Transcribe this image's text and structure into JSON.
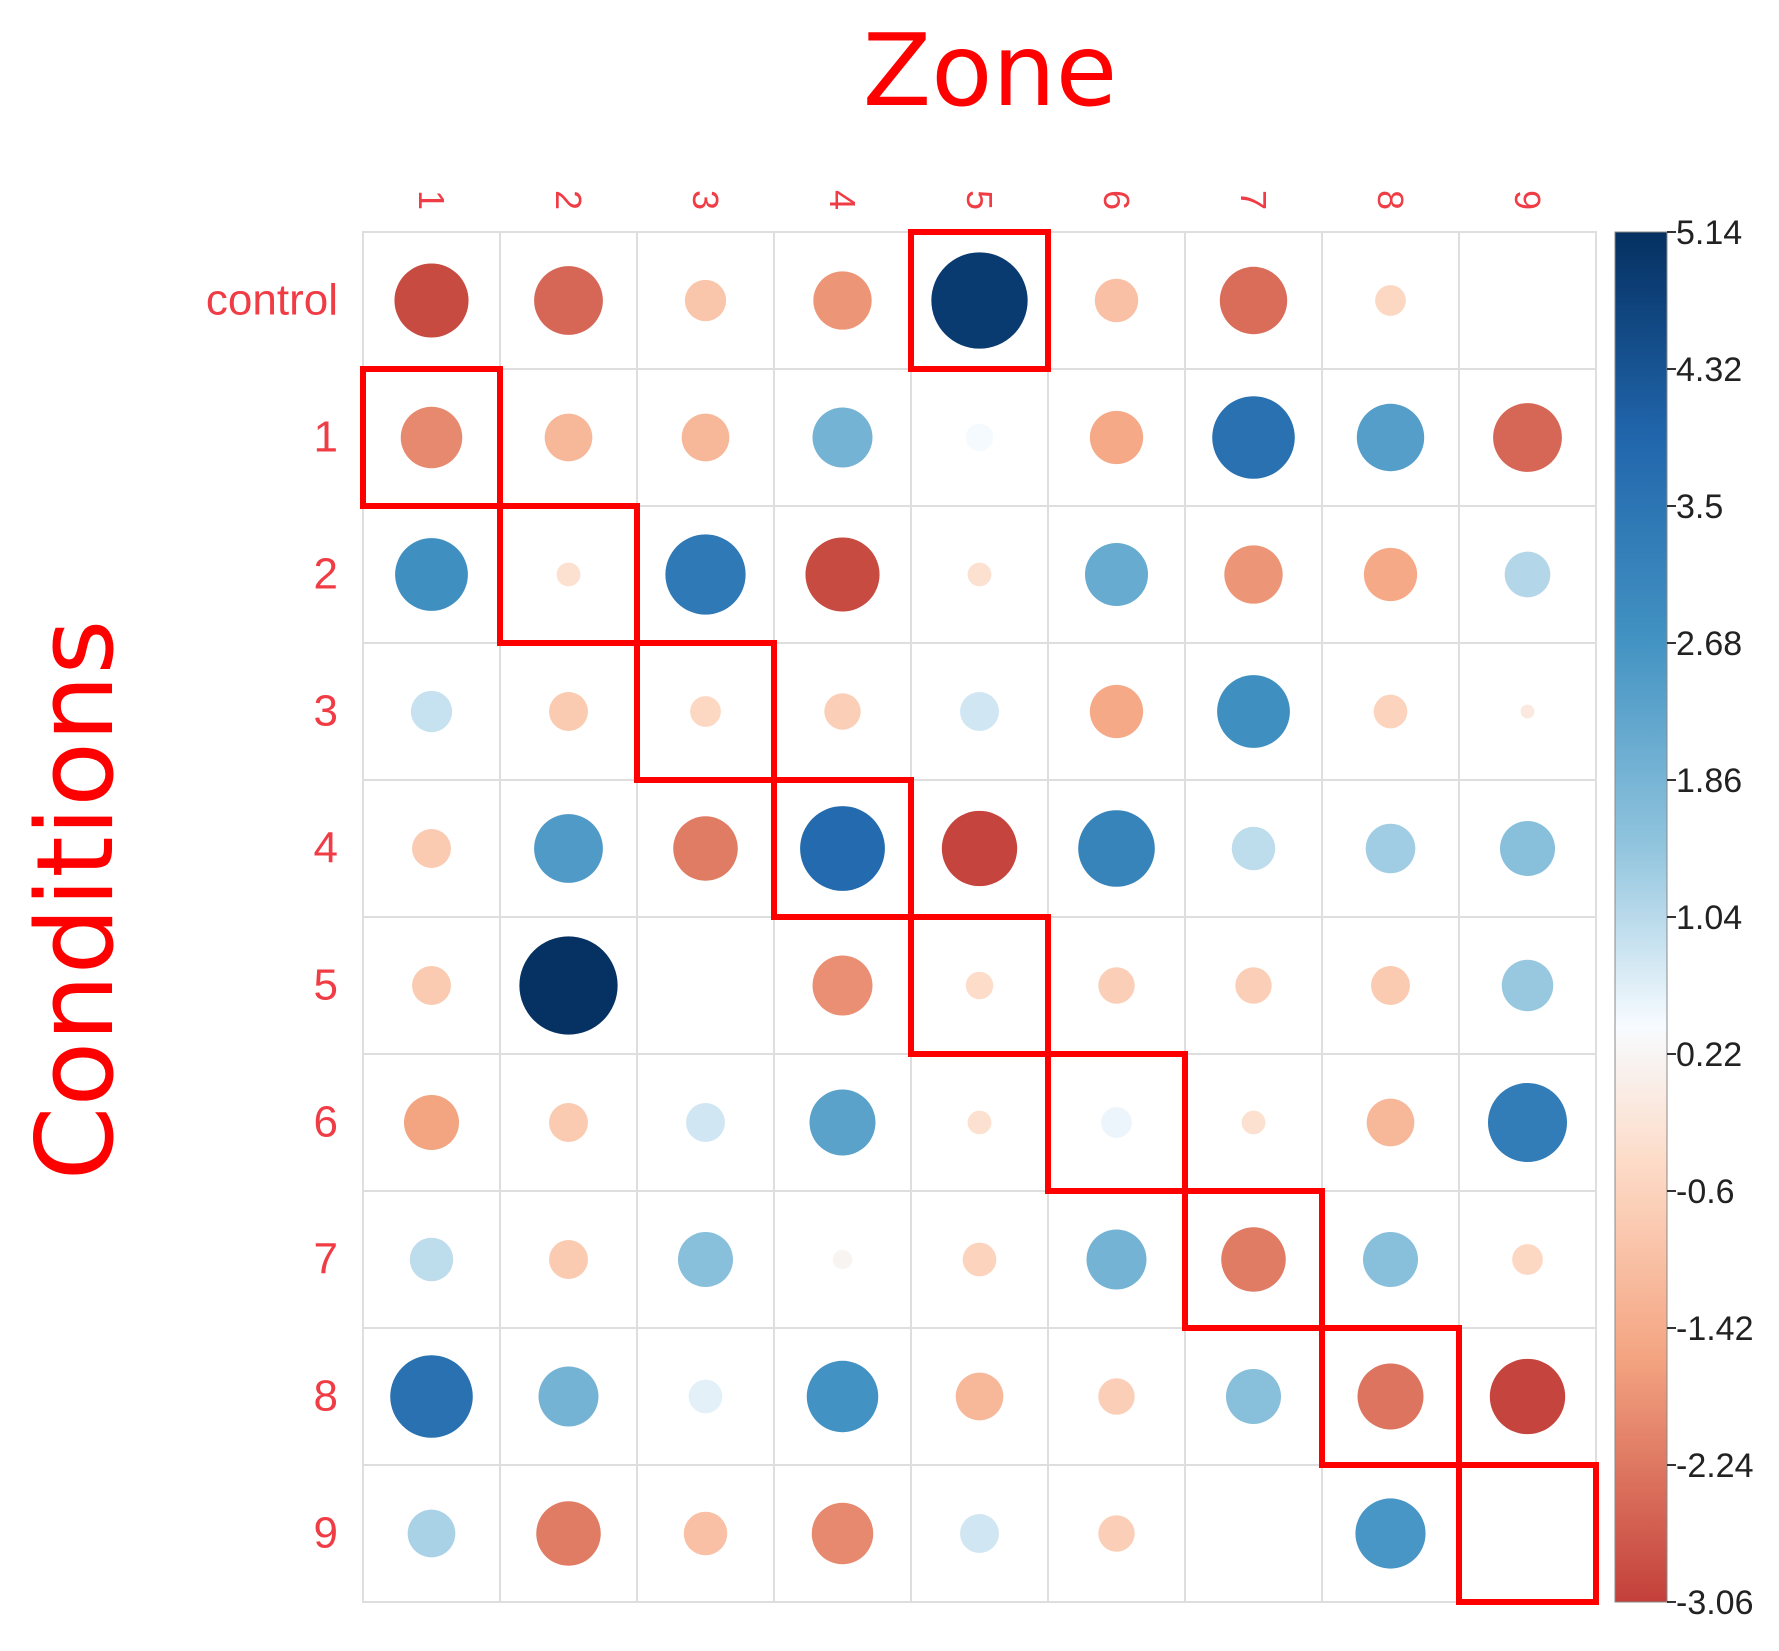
{
  "chart_data": {
    "type": "heatmap",
    "title": "Zone",
    "xlabel": "Zone",
    "ylabel": "Conditions",
    "columns": [
      "1",
      "2",
      "3",
      "4",
      "5",
      "6",
      "7",
      "8",
      "9"
    ],
    "rows": [
      "control",
      "1",
      "2",
      "3",
      "4",
      "5",
      "6",
      "7",
      "8",
      "9"
    ],
    "values": [
      [
        -2.9,
        -2.5,
        -0.9,
        -1.8,
        4.9,
        -1.0,
        -2.4,
        -0.5,
        0.0
      ],
      [
        -2.0,
        -1.2,
        -1.2,
        1.9,
        0.4,
        -1.5,
        3.6,
        2.4,
        -2.5
      ],
      [
        2.8,
        -0.3,
        3.4,
        -2.9,
        -0.3,
        2.1,
        -1.8,
        -1.5,
        1.1
      ],
      [
        0.9,
        -0.8,
        -0.5,
        -0.7,
        0.8,
        -1.5,
        2.8,
        -0.6,
        -0.1
      ],
      [
        -0.8,
        2.5,
        -2.2,
        3.8,
        -3.0,
        3.1,
        1.0,
        1.3,
        1.6
      ],
      [
        -0.8,
        5.1,
        0.0,
        -1.9,
        -0.4,
        -0.7,
        -0.7,
        -0.8,
        1.4
      ],
      [
        -1.6,
        -0.8,
        0.8,
        2.3,
        -0.3,
        0.5,
        -0.3,
        -1.2,
        3.3
      ],
      [
        1.0,
        -0.8,
        1.6,
        0.2,
        -0.6,
        1.9,
        -2.2,
        1.6,
        -0.5
      ],
      [
        3.6,
        1.9,
        0.6,
        2.7,
        -1.2,
        -0.7,
        1.6,
        -2.3,
        -3.0
      ],
      [
        1.2,
        -2.2,
        -1.0,
        -2.0,
        0.8,
        -0.7,
        0.0,
        2.6,
        0.0
      ]
    ],
    "highlighted_cells": [
      [
        0,
        4
      ],
      [
        1,
        0
      ],
      [
        2,
        1
      ],
      [
        3,
        2
      ],
      [
        4,
        3
      ],
      [
        5,
        4
      ],
      [
        6,
        5
      ],
      [
        7,
        6
      ],
      [
        8,
        7
      ],
      [
        9,
        8
      ]
    ],
    "colorbar": {
      "min": -3.06,
      "max": 5.14,
      "ticks": [
        "5.14",
        "4.32",
        "3.5",
        "2.68",
        "1.86",
        "1.04",
        "0.22",
        "-0.6",
        "-1.42",
        "-2.24",
        "-3.06"
      ]
    },
    "colors": {
      "negative": "#c3403a",
      "positive": "#0a3465",
      "label": "#f03c45",
      "title": "#ff0000",
      "highlight": "#ff0000",
      "grid": "#dedede"
    }
  }
}
